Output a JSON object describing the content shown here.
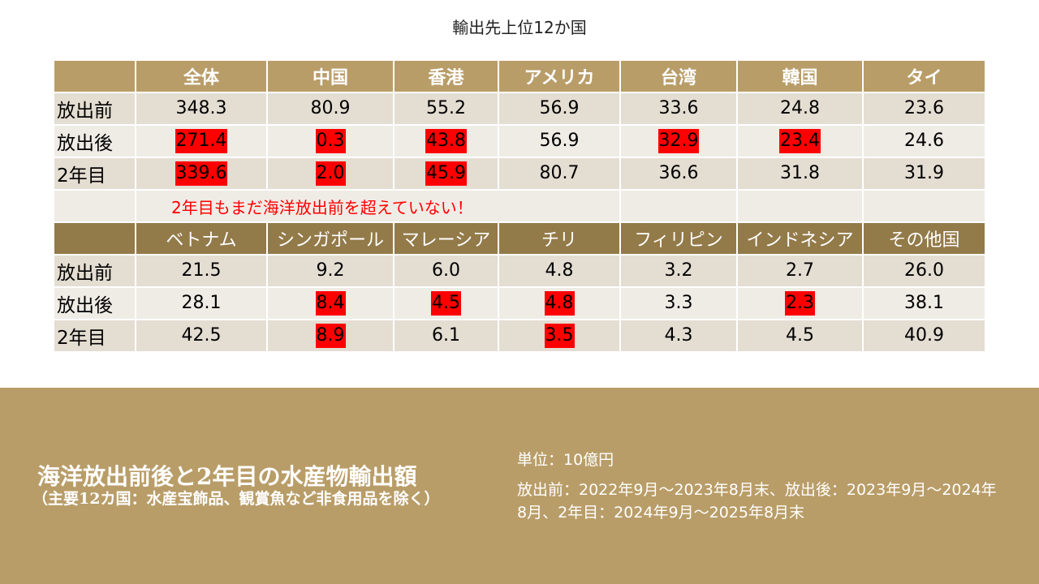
{
  "title": "輸出先上位12か国",
  "chart_data": {
    "type": "table",
    "note": "2年目もまだ海洋放出前を超えていない！",
    "highlight_color": "#ff0000",
    "header_color": "#b99d68",
    "header2_color": "#937a49",
    "tables": [
      {
        "columns": [
          "全体",
          "中国",
          "香港",
          "アメリカ",
          "台湾",
          "韓国",
          "タイ"
        ],
        "rows": [
          {
            "label": "放出前",
            "values": [
              "348.3",
              "80.9",
              "55.2",
              "56.9",
              "33.6",
              "24.8",
              "23.6"
            ],
            "highlight": [
              false,
              false,
              false,
              false,
              false,
              false,
              false
            ]
          },
          {
            "label": "放出後",
            "values": [
              "271.4",
              "0.3",
              "43.8",
              "56.9",
              "32.9",
              "23.4",
              "24.6"
            ],
            "highlight": [
              true,
              true,
              true,
              false,
              true,
              true,
              false
            ]
          },
          {
            "label": "2年目",
            "values": [
              "339.6",
              "2.0",
              "45.9",
              "80.7",
              "36.6",
              "31.8",
              "31.9"
            ],
            "highlight": [
              true,
              true,
              true,
              false,
              false,
              false,
              false
            ]
          }
        ]
      },
      {
        "columns": [
          "ベトナム",
          "シンガポール",
          "マレーシア",
          "チリ",
          "フィリピン",
          "インドネシア",
          "その他国"
        ],
        "rows": [
          {
            "label": "放出前",
            "values": [
              "21.5",
              "9.2",
              "6.0",
              "4.8",
              "3.2",
              "2.7",
              "26.0"
            ],
            "highlight": [
              false,
              false,
              false,
              false,
              false,
              false,
              false
            ]
          },
          {
            "label": "放出後",
            "values": [
              "28.1",
              "8.4",
              "4.5",
              "4.8",
              "3.3",
              "2.3",
              "38.1"
            ],
            "highlight": [
              false,
              true,
              true,
              true,
              false,
              true,
              false
            ]
          },
          {
            "label": "2年目",
            "values": [
              "42.5",
              "8.9",
              "6.1",
              "3.5",
              "4.3",
              "4.5",
              "40.9"
            ],
            "highlight": [
              false,
              true,
              false,
              true,
              false,
              false,
              false
            ]
          }
        ]
      }
    ]
  },
  "footer": {
    "title": "海洋放出前後と2年目の水産物輸出額",
    "subtitle": "（主要12カ国：水産宝飾品、観賞魚など非食用品を除く）",
    "unit": "単位：10億円",
    "period": "放出前：2022年9月～2023年8月末、放出後：2023年9月～2024年8月、2年目：2024年9月～2025年8月末"
  }
}
